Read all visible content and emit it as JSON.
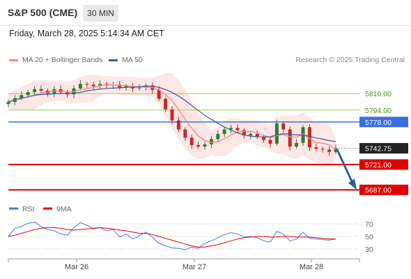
{
  "header": {
    "title": "S&P 500 (CME)",
    "timeframe": "30 MIN",
    "datetime": "Friday, March 28, 2025 5:14:34 AM CET"
  },
  "legend": {
    "ma20_label": "MA 20 + Bollinger Bands",
    "ma50_label": "MA 50",
    "credit": "Research © 2025 Trading Central"
  },
  "rsi_legend": {
    "rsi_label": "RSI",
    "ma_label": "9MA"
  },
  "colors": {
    "bull": "#2e7d32",
    "bear": "#c62828",
    "ma20": "#f28b82",
    "ma50": "#3a5a9b",
    "band_fill": "#fde2e2",
    "resistance": "#9acd6a",
    "pivot": "#3b6fe0",
    "support": "#e00000",
    "arrow": "#2f5e9c",
    "rsi": "#4a78d6",
    "rsi_ma": "#e00000"
  },
  "chart_data": [
    {
      "type": "candlestick",
      "x_labels": [
        "Mar 26",
        "Mar 27",
        "Mar 28"
      ],
      "levels": [
        {
          "value": 5816.0,
          "label": "5816.00",
          "kind": "resistance"
        },
        {
          "value": 5794.0,
          "label": "5794.00",
          "kind": "resistance"
        },
        {
          "value": 5778.0,
          "label": "5778.00",
          "kind": "pivot"
        },
        {
          "value": 5742.75,
          "label": "5742.75",
          "kind": "last"
        },
        {
          "value": 5721.0,
          "label": "5721.00",
          "kind": "support"
        },
        {
          "value": 5687.0,
          "label": "5687.00",
          "kind": "support"
        }
      ],
      "y_range": [
        5676,
        5848
      ],
      "last_price": 5742.75,
      "forecast_target": 5687.0,
      "close_path": [
        5805,
        5810,
        5814,
        5818,
        5822,
        5820,
        5816,
        5822,
        5818,
        5815,
        5823,
        5829,
        5828,
        5826,
        5829,
        5827,
        5828,
        5824,
        5826,
        5823,
        5824,
        5827,
        5821,
        5809,
        5795,
        5780,
        5768,
        5757,
        5747,
        5745,
        5748,
        5755,
        5762,
        5768,
        5770,
        5767,
        5760,
        5762,
        5758,
        5754,
        5749,
        5776,
        5768,
        5745,
        5750,
        5771,
        5744,
        5742,
        5741,
        5738,
        5743
      ]
    },
    {
      "type": "line",
      "name": "RSI",
      "levels": [
        70,
        50,
        30
      ],
      "y_range": [
        20,
        80
      ],
      "series": [
        {
          "name": "RSI",
          "values": [
            50,
            63,
            66,
            71,
            73,
            66,
            61,
            59,
            54,
            52,
            64,
            72,
            68,
            62,
            64,
            59,
            61,
            49,
            54,
            46,
            51,
            57,
            49,
            39,
            35,
            32,
            31,
            29,
            33,
            31,
            39,
            43,
            48,
            53,
            56,
            54,
            49,
            50,
            48,
            43,
            41,
            58,
            54,
            43,
            46,
            57,
            47,
            46,
            45,
            44,
            46
          ]
        },
        {
          "name": "9MA",
          "values": [
            50,
            52,
            55,
            58,
            61,
            63,
            64,
            64,
            63,
            61,
            60,
            61,
            62,
            63,
            64,
            63,
            62,
            60,
            59,
            57,
            55,
            55,
            53,
            50,
            47,
            44,
            41,
            38,
            35,
            33,
            33,
            35,
            37,
            40,
            43,
            46,
            48,
            49,
            50,
            50,
            49,
            49,
            50,
            50,
            49,
            49,
            49,
            48,
            47,
            46,
            46
          ]
        }
      ]
    }
  ]
}
